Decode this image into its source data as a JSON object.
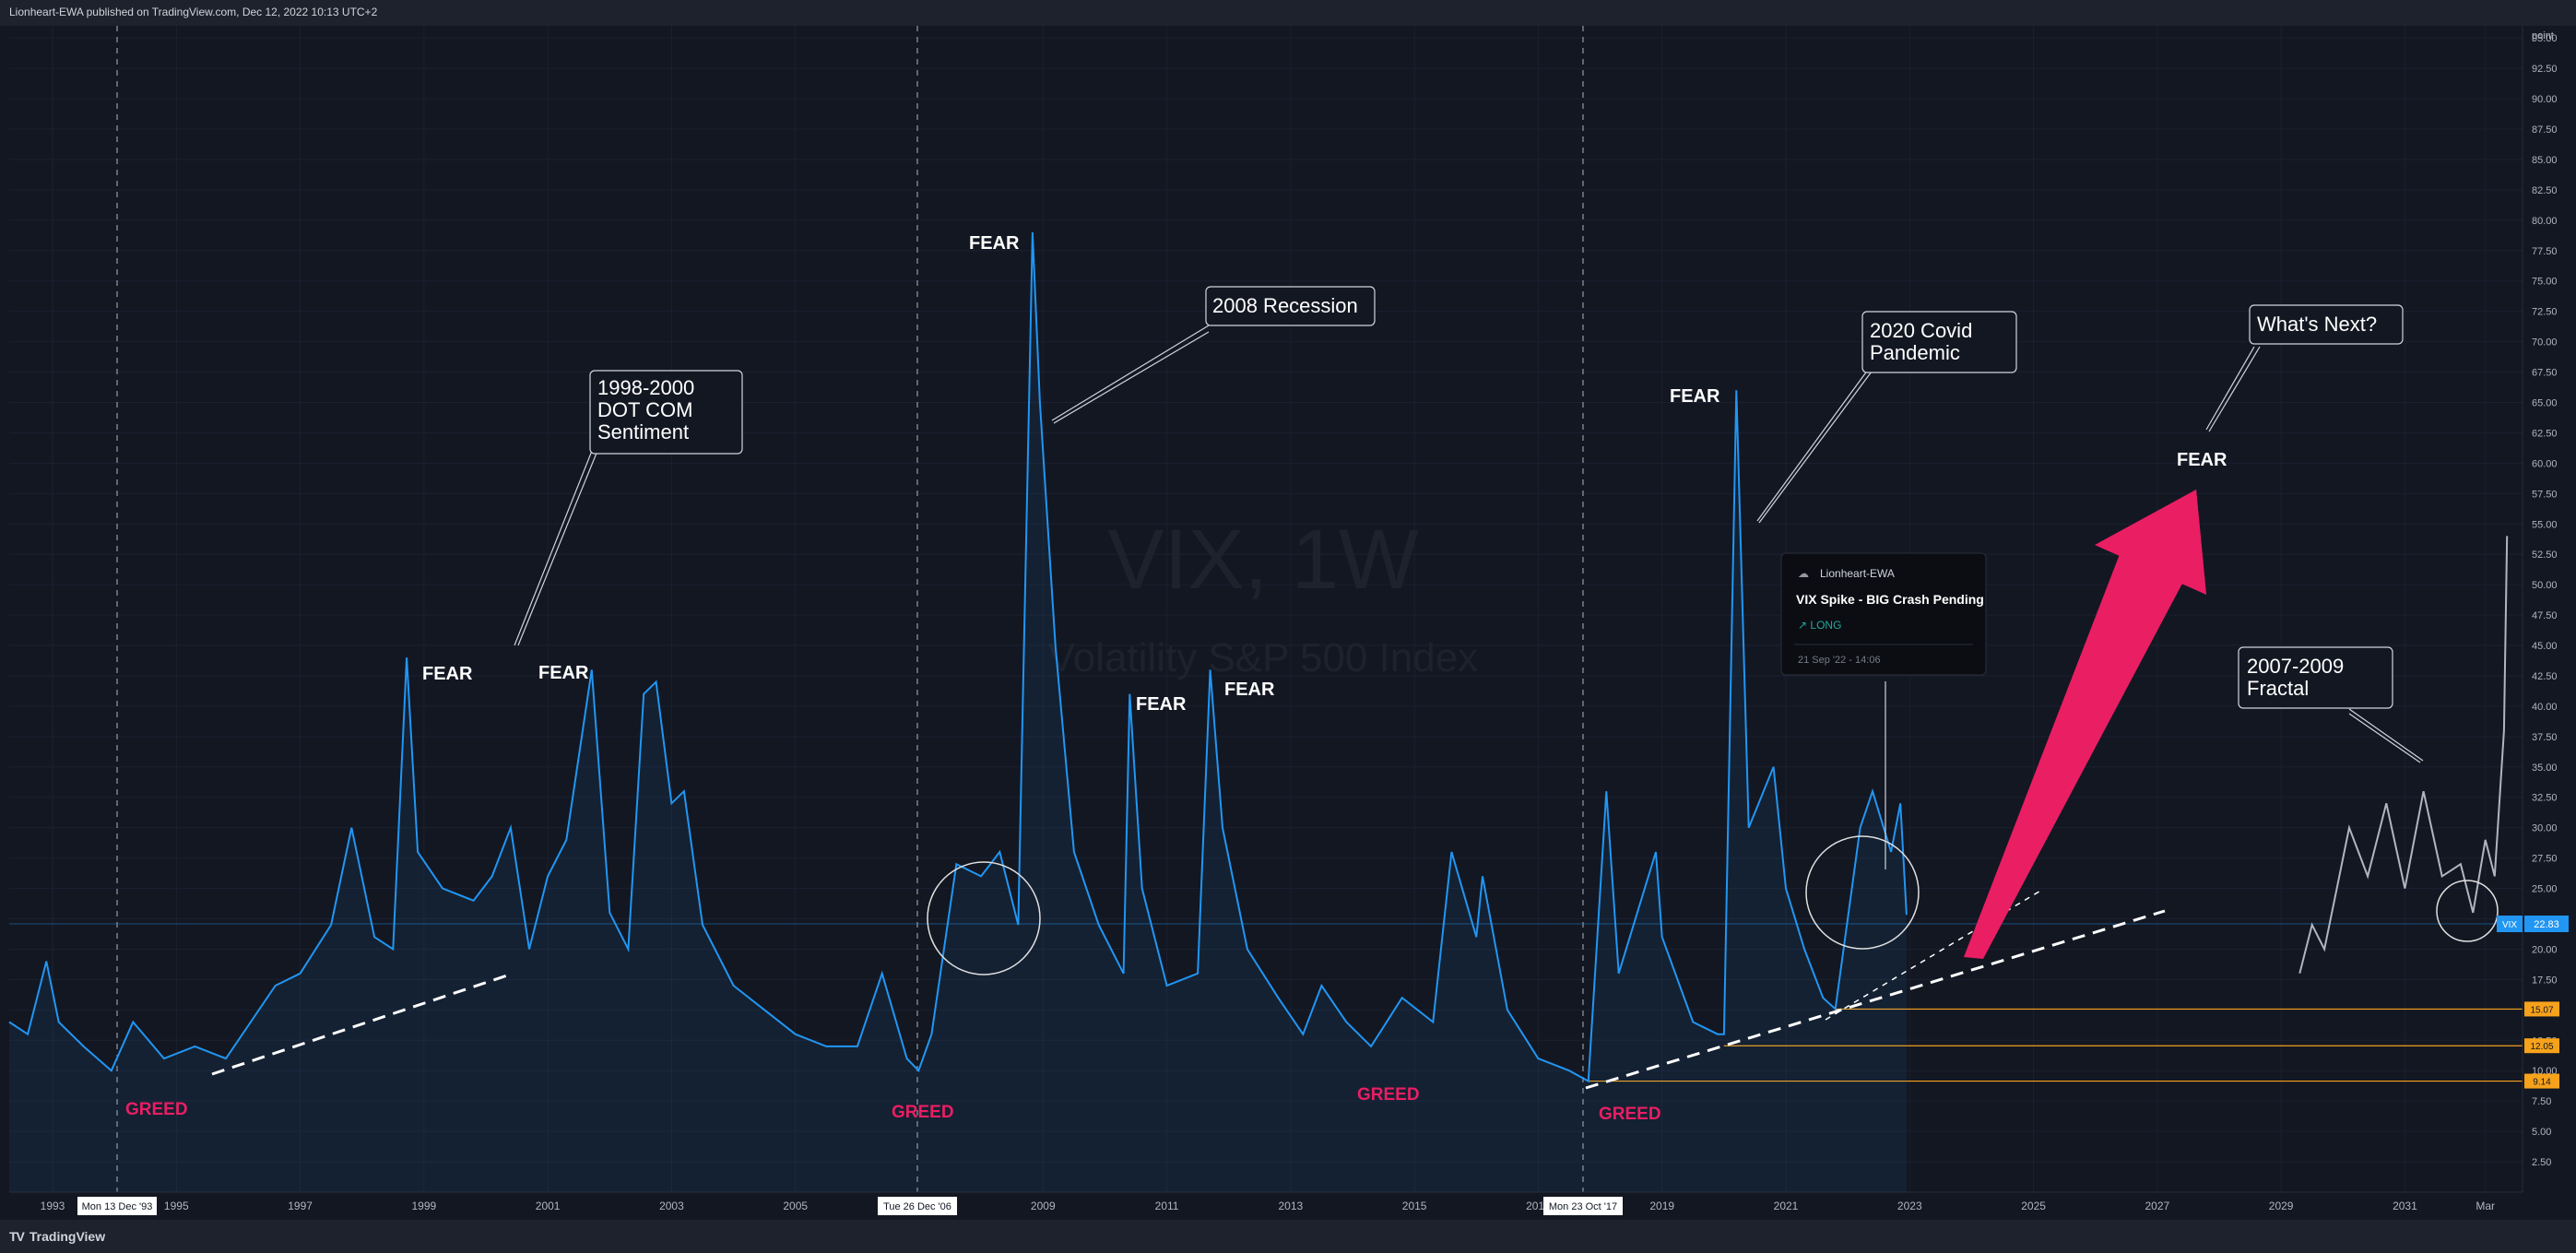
{
  "header": {
    "published": "Lionheart-EWA published on TradingView.com, Dec 12, 2022 10:13 UTC+2"
  },
  "footer": {
    "logo_text": "TradingView",
    "logo_mark": "TV"
  },
  "watermark": {
    "title": "VIX, 1W",
    "subtitle": "Volatility S&P 500 Index"
  },
  "colors": {
    "background": "#131722",
    "vix_line": "#2196f3",
    "fractal_line": "#b2b5be",
    "fear_arrow": "#e91e63",
    "greed_text": "#e91e63",
    "level_line": "#f7a21b",
    "price_badge": "#2196f3"
  },
  "annotations": {
    "fear": [
      "FEAR",
      "FEAR",
      "FEAR",
      "FEAR",
      "FEAR",
      "FEAR",
      "FEAR"
    ],
    "greed": [
      "GREED",
      "GREED",
      "GREED",
      "GREED"
    ],
    "callouts": {
      "dotcom": [
        "1998-2000",
        "DOT COM",
        "Sentiment"
      ],
      "recession": "2008 Recession",
      "covid": [
        "2020 Covid",
        "Pandemic"
      ],
      "whats_next": "What's Next?",
      "fractal": [
        "2007-2009",
        "Fractal"
      ]
    },
    "idea_card": {
      "author": "Lionheart-EWA",
      "title": "VIX Spike - BIG Crash Pending",
      "direction": "↗ LONG",
      "date": "21 Sep '22 - 14:06"
    },
    "date_flags": [
      "Mon 13 Dec '93",
      "Tue 26 Dec '06",
      "Mon 23 Oct '17"
    ]
  },
  "price_axis": {
    "unit": "point",
    "current_symbol": "VIX",
    "current_value": "22.83",
    "level_labels": [
      "15.07",
      "12.05",
      "9.14"
    ]
  },
  "chart_data": {
    "type": "line",
    "ylabel": "point",
    "ylim": [
      0,
      96
    ],
    "y_ticks": [
      "2.50",
      "5.00",
      "7.50",
      "10.00",
      "12.50",
      "15.00",
      "17.50",
      "20.00",
      "22.50",
      "25.00",
      "27.50",
      "30.00",
      "32.50",
      "35.00",
      "37.50",
      "40.00",
      "42.50",
      "45.00",
      "47.50",
      "50.00",
      "52.50",
      "55.00",
      "57.50",
      "60.00",
      "62.50",
      "65.00",
      "67.50",
      "70.00",
      "72.50",
      "75.00",
      "77.50",
      "80.00",
      "82.50",
      "85.00",
      "87.50",
      "90.00",
      "92.50",
      "95.00"
    ],
    "x_ticks": [
      "1993",
      "1995",
      "1997",
      "1999",
      "2001",
      "2003",
      "2005",
      "2009",
      "2011",
      "2013",
      "2015",
      "2017",
      "2019",
      "2021",
      "2023",
      "2025",
      "2027",
      "2029",
      "2031",
      "Mar"
    ],
    "xlim": [
      1992.3,
      2032.9
    ],
    "series": [
      {
        "name": "VIX",
        "points": [
          [
            1992.3,
            14
          ],
          [
            1992.6,
            13
          ],
          [
            1992.9,
            19
          ],
          [
            1993.1,
            14
          ],
          [
            1993.5,
            12
          ],
          [
            1993.95,
            10
          ],
          [
            1994.3,
            14
          ],
          [
            1994.8,
            11
          ],
          [
            1995.3,
            12
          ],
          [
            1995.8,
            11
          ],
          [
            1996.2,
            14
          ],
          [
            1996.6,
            17
          ],
          [
            1997.0,
            18
          ],
          [
            1997.5,
            22
          ],
          [
            1997.83,
            30
          ],
          [
            1998.2,
            21
          ],
          [
            1998.5,
            20
          ],
          [
            1998.72,
            44
          ],
          [
            1998.9,
            28
          ],
          [
            1999.3,
            25
          ],
          [
            1999.8,
            24
          ],
          [
            2000.1,
            26
          ],
          [
            2000.4,
            30
          ],
          [
            2000.7,
            20
          ],
          [
            2001.0,
            26
          ],
          [
            2001.3,
            29
          ],
          [
            2001.71,
            43
          ],
          [
            2002.0,
            23
          ],
          [
            2002.3,
            20
          ],
          [
            2002.55,
            41
          ],
          [
            2002.75,
            42
          ],
          [
            2003.0,
            32
          ],
          [
            2003.2,
            33
          ],
          [
            2003.5,
            22
          ],
          [
            2004.0,
            17
          ],
          [
            2004.5,
            15
          ],
          [
            2005.0,
            13
          ],
          [
            2005.5,
            12
          ],
          [
            2006.0,
            12
          ],
          [
            2006.4,
            18
          ],
          [
            2006.8,
            11
          ],
          [
            2006.99,
            10
          ],
          [
            2007.2,
            13
          ],
          [
            2007.6,
            27
          ],
          [
            2008.0,
            26
          ],
          [
            2008.3,
            28
          ],
          [
            2008.6,
            22
          ],
          [
            2008.83,
            79
          ],
          [
            2008.95,
            65
          ],
          [
            2009.2,
            45
          ],
          [
            2009.5,
            28
          ],
          [
            2009.9,
            22
          ],
          [
            2010.3,
            18
          ],
          [
            2010.4,
            41
          ],
          [
            2010.6,
            25
          ],
          [
            2011.0,
            17
          ],
          [
            2011.5,
            18
          ],
          [
            2011.7,
            43
          ],
          [
            2011.9,
            30
          ],
          [
            2012.3,
            20
          ],
          [
            2012.8,
            16
          ],
          [
            2013.2,
            13
          ],
          [
            2013.5,
            17
          ],
          [
            2013.9,
            14
          ],
          [
            2014.3,
            12
          ],
          [
            2014.8,
            16
          ],
          [
            2015.3,
            14
          ],
          [
            2015.6,
            28
          ],
          [
            2016.0,
            21
          ],
          [
            2016.1,
            26
          ],
          [
            2016.5,
            15
          ],
          [
            2017.0,
            11
          ],
          [
            2017.5,
            10
          ],
          [
            2017.81,
            9.14
          ],
          [
            2018.1,
            33
          ],
          [
            2018.3,
            18
          ],
          [
            2018.9,
            28
          ],
          [
            2019.0,
            21
          ],
          [
            2019.5,
            14
          ],
          [
            2019.9,
            13
          ],
          [
            2020.0,
            13
          ],
          [
            2020.2,
            66
          ],
          [
            2020.4,
            30
          ],
          [
            2020.8,
            35
          ],
          [
            2021.0,
            25
          ],
          [
            2021.3,
            20
          ],
          [
            2021.6,
            16
          ],
          [
            2021.8,
            15.07
          ],
          [
            2022.2,
            30
          ],
          [
            2022.4,
            33
          ],
          [
            2022.7,
            28
          ],
          [
            2022.85,
            32
          ],
          [
            2022.95,
            22.83
          ]
        ]
      },
      {
        "name": "2007-2009 Fractal",
        "points": [
          [
            2029.3,
            18
          ],
          [
            2029.5,
            22
          ],
          [
            2029.7,
            20
          ],
          [
            2029.9,
            25
          ],
          [
            2030.1,
            30
          ],
          [
            2030.4,
            26
          ],
          [
            2030.7,
            32
          ],
          [
            2031.0,
            25
          ],
          [
            2031.3,
            33
          ],
          [
            2031.6,
            26
          ],
          [
            2031.9,
            27
          ],
          [
            2032.1,
            23
          ],
          [
            2032.3,
            29
          ],
          [
            2032.45,
            26
          ],
          [
            2032.6,
            38
          ],
          [
            2032.65,
            54
          ]
        ]
      }
    ],
    "horizontal_levels": [
      15.07,
      12.05,
      9.14
    ],
    "last_value": 22.83
  }
}
